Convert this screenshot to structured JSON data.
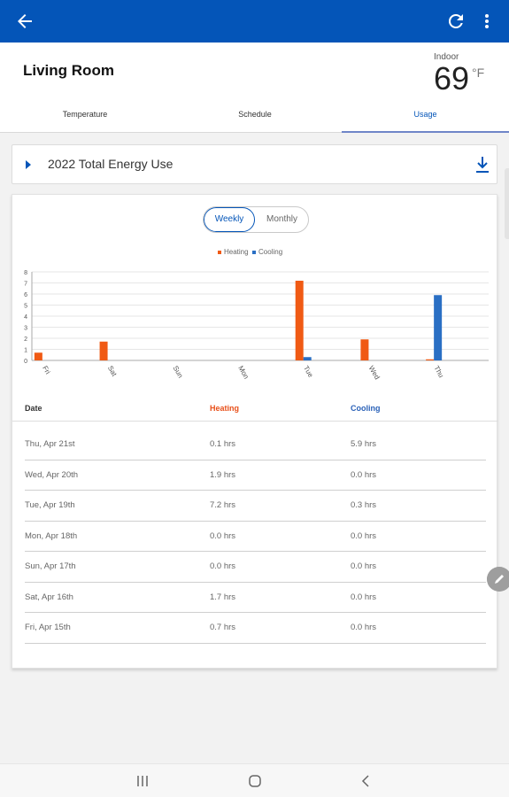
{
  "header": {
    "room_title": "Living Room",
    "indoor_label": "Indoor",
    "indoor_temp": "69",
    "indoor_unit": "°F"
  },
  "tabs": [
    {
      "label": "Temperature"
    },
    {
      "label": "Schedule"
    },
    {
      "label": "Usage",
      "active": true
    }
  ],
  "energy_card": {
    "label": "2022 Total Energy Use"
  },
  "toggle": {
    "weekly": "Weekly",
    "monthly": "Monthly",
    "selected": "Weekly"
  },
  "colors": {
    "accent": "#0455b8",
    "heating": "#f05a14",
    "cooling": "#2a6fc4"
  },
  "chart_data": {
    "type": "bar",
    "categories": [
      "Fri",
      "Sat",
      "Sun",
      "Mon",
      "Tue",
      "Wed",
      "Thu"
    ],
    "series": [
      {
        "name": "Heating",
        "values": [
          0.7,
          1.7,
          0.0,
          0.0,
          7.2,
          1.9,
          0.1
        ]
      },
      {
        "name": "Cooling",
        "values": [
          0.0,
          0.0,
          0.0,
          0.0,
          0.3,
          0.0,
          5.9
        ]
      }
    ],
    "yticks": [
      "0",
      "1",
      "2",
      "3",
      "4",
      "5",
      "6",
      "7",
      "8"
    ],
    "ylim": [
      0,
      8
    ],
    "legend": "top-center",
    "grid": true
  },
  "table": {
    "headers": {
      "date": "Date",
      "heating": "Heating",
      "cooling": "Cooling"
    },
    "rows": [
      {
        "date": "Thu, Apr 21st",
        "heating": "0.1 hrs",
        "cooling": "5.9 hrs"
      },
      {
        "date": "Wed, Apr 20th",
        "heating": "1.9 hrs",
        "cooling": "0.0 hrs"
      },
      {
        "date": "Tue, Apr 19th",
        "heating": "7.2 hrs",
        "cooling": "0.3 hrs"
      },
      {
        "date": "Mon, Apr 18th",
        "heating": "0.0 hrs",
        "cooling": "0.0 hrs"
      },
      {
        "date": "Sun, Apr 17th",
        "heating": "0.0 hrs",
        "cooling": "0.0 hrs"
      },
      {
        "date": "Sat, Apr 16th",
        "heating": "1.7 hrs",
        "cooling": "0.0 hrs"
      },
      {
        "date": "Fri, Apr 15th",
        "heating": "0.7 hrs",
        "cooling": "0.0 hrs"
      }
    ]
  }
}
